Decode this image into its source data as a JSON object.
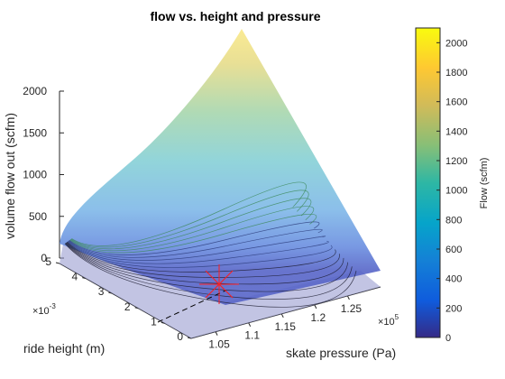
{
  "chart_data": {
    "type": "surface",
    "title": "flow vs. height and pressure",
    "zlabel": "volume flow out (scfm)",
    "ylabel": "ride height (m)",
    "xlabel": "skate pressure (Pa)",
    "x_multiplier": "×10",
    "x_exponent": "5",
    "y_multiplier": "×10",
    "y_exponent": "-3",
    "x_ticks": [
      "1.05",
      "1.1",
      "1.15",
      "1.2",
      "1.25"
    ],
    "y_ticks": [
      "0",
      "1",
      "2",
      "3",
      "4",
      "5"
    ],
    "z_ticks": [
      "0",
      "500",
      "1000",
      "1500",
      "2000"
    ],
    "xlim": [
      1.013,
      1.3
    ],
    "ylim": [
      0,
      5
    ],
    "zlim": [
      0,
      2100
    ],
    "colormap": "parula",
    "surface_corners": [
      {
        "pressure": 1.013,
        "height": 0,
        "flow": 0
      },
      {
        "pressure": 1.3,
        "height": 0,
        "flow": 0
      },
      {
        "pressure": 1.3,
        "height": 5,
        "flow": 2100
      },
      {
        "pressure": 1.013,
        "height": 5,
        "flow": 0
      }
    ],
    "operating_point": {
      "pressure": 1.15,
      "height": 1.2,
      "flow": 0
    },
    "operating_point_marker": "red-asterisk",
    "contour_lines": 16,
    "colorbar": {
      "label": "Flow (scfm)",
      "ticks": [
        "0",
        "200",
        "400",
        "600",
        "800",
        "1000",
        "1200",
        "1400",
        "1600",
        "1800",
        "2000"
      ],
      "range": [
        0,
        2100
      ]
    }
  }
}
